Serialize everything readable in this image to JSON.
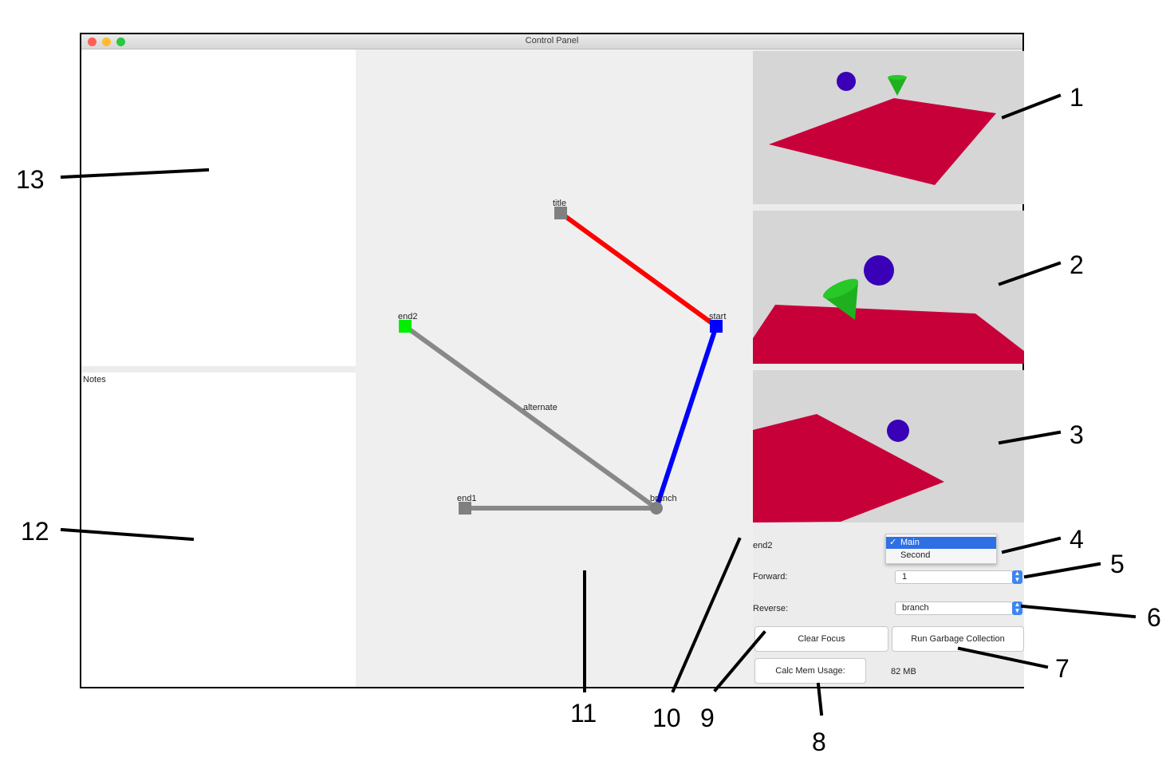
{
  "window": {
    "title": "Control Panel",
    "traffic_colors": {
      "close": "#ff5f57",
      "minimize": "#febc2e",
      "zoom": "#28c840"
    }
  },
  "notes": {
    "label": "Notes"
  },
  "graph": {
    "nodes": {
      "title": "title",
      "start": "start",
      "end2": "end2",
      "end1": "end1",
      "branch": "branch"
    },
    "edge_labels": {
      "alternate": "alternate"
    },
    "colors": {
      "node_gray": "#808080",
      "node_blue": "#0000ff",
      "node_green": "#00ee00",
      "edge_red": "#ff0000",
      "edge_blue": "#0000ff",
      "edge_gray": "#888888"
    }
  },
  "views": {
    "colors": {
      "plane": "#c8003a",
      "sphere": "#3a00b8",
      "cone": "#1fb01f",
      "background": "#d6d6d6"
    }
  },
  "controls": {
    "focus_label": "end2",
    "dropdown": {
      "selected": "Main",
      "options": [
        "Main",
        "Second"
      ],
      "checkmark": "✓"
    },
    "forward_label": "Forward:",
    "forward_value": "1",
    "reverse_label": "Reverse:",
    "reverse_value": "branch",
    "clear_focus": "Clear Focus",
    "run_gc": "Run Garbage Collection",
    "calc_mem": "Calc Mem Usage:",
    "mem_value": "82 MB"
  },
  "callouts": [
    "1",
    "2",
    "3",
    "4",
    "5",
    "6",
    "7",
    "8",
    "9",
    "10",
    "11",
    "12",
    "13"
  ]
}
